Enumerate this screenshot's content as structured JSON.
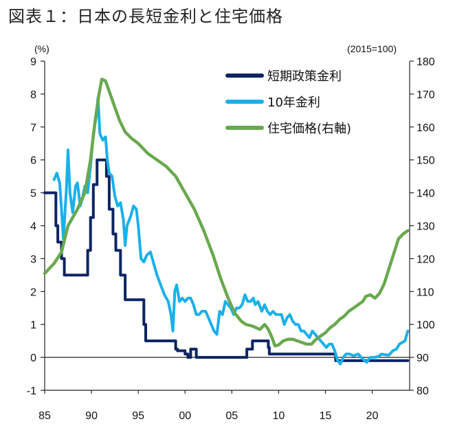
{
  "title": "図表１：日本の長短金利と住宅価格",
  "chart_data": {
    "type": "line",
    "title": "図表１：日本の長短金利と住宅価格",
    "left_axis": {
      "unit": "(%)",
      "ylim": [
        -1,
        9
      ],
      "ticks": [
        "-1",
        "0",
        "1",
        "2",
        "3",
        "4",
        "5",
        "6",
        "7",
        "8",
        "9"
      ]
    },
    "right_axis": {
      "unit": "(2015=100)",
      "ylim": [
        80,
        180
      ],
      "ticks": [
        "80",
        "90",
        "100",
        "110",
        "120",
        "130",
        "140",
        "150",
        "160",
        "170",
        "180"
      ]
    },
    "x_axis": {
      "xlim": [
        1985,
        2024
      ],
      "ticks": [
        {
          "label": "85",
          "year": 1985
        },
        {
          "label": "90",
          "year": 1990
        },
        {
          "label": "95",
          "year": 1995
        },
        {
          "label": "00",
          "year": 2000
        },
        {
          "label": "05",
          "year": 2005
        },
        {
          "label": "10",
          "year": 2010
        },
        {
          "label": "15",
          "year": 2015
        },
        {
          "label": "20",
          "year": 2020
        }
      ]
    },
    "legend_position": "top-right",
    "series": [
      {
        "name": "短期政策金利",
        "color": "#0c2461",
        "axis": "left",
        "step": true,
        "points": [
          [
            1985.0,
            5.0
          ],
          [
            1986.0,
            5.0
          ],
          [
            1986.2,
            4.0
          ],
          [
            1986.4,
            3.5
          ],
          [
            1986.8,
            3.0
          ],
          [
            1987.1,
            2.5
          ],
          [
            1989.4,
            2.5
          ],
          [
            1989.6,
            3.25
          ],
          [
            1989.9,
            4.25
          ],
          [
            1990.2,
            5.25
          ],
          [
            1990.6,
            6.0
          ],
          [
            1991.4,
            6.0
          ],
          [
            1991.6,
            5.5
          ],
          [
            1991.9,
            4.5
          ],
          [
            1992.3,
            3.75
          ],
          [
            1992.6,
            3.25
          ],
          [
            1993.1,
            2.5
          ],
          [
            1993.6,
            1.75
          ],
          [
            1995.3,
            1.75
          ],
          [
            1995.6,
            1.0
          ],
          [
            1995.8,
            0.5
          ],
          [
            1998.6,
            0.5
          ],
          [
            1999.0,
            0.25
          ],
          [
            1999.2,
            0.2
          ],
          [
            2000.0,
            0.1
          ],
          [
            2000.3,
            0.0
          ],
          [
            2000.6,
            0.25
          ],
          [
            2001.0,
            0.25
          ],
          [
            2001.2,
            0.0
          ],
          [
            2006.3,
            0.0
          ],
          [
            2006.6,
            0.25
          ],
          [
            2007.0,
            0.25
          ],
          [
            2007.2,
            0.5
          ],
          [
            2008.8,
            0.5
          ],
          [
            2008.9,
            0.3
          ],
          [
            2009.0,
            0.1
          ],
          [
            2016.0,
            0.1
          ],
          [
            2016.1,
            -0.1
          ],
          [
            2023.8,
            -0.1
          ]
        ]
      },
      {
        "name": "10年金利",
        "color": "#1ab0ea",
        "axis": "left",
        "step": false,
        "points": [
          [
            1986.0,
            5.4
          ],
          [
            1986.3,
            5.6
          ],
          [
            1986.6,
            5.3
          ],
          [
            1986.8,
            4.5
          ],
          [
            1987.0,
            3.6
          ],
          [
            1987.3,
            5.0
          ],
          [
            1987.5,
            6.3
          ],
          [
            1987.7,
            5.0
          ],
          [
            1988.0,
            4.4
          ],
          [
            1988.3,
            5.2
          ],
          [
            1988.5,
            5.3
          ],
          [
            1988.8,
            4.6
          ],
          [
            1989.0,
            4.8
          ],
          [
            1989.3,
            5.2
          ],
          [
            1989.6,
            5.0
          ],
          [
            1989.9,
            5.8
          ],
          [
            1990.2,
            6.8
          ],
          [
            1990.5,
            7.3
          ],
          [
            1990.7,
            7.9
          ],
          [
            1990.9,
            6.8
          ],
          [
            1991.2,
            6.6
          ],
          [
            1991.5,
            6.7
          ],
          [
            1991.7,
            6.0
          ],
          [
            1991.9,
            5.6
          ],
          [
            1992.2,
            5.5
          ],
          [
            1992.5,
            4.9
          ],
          [
            1992.8,
            4.6
          ],
          [
            1993.1,
            4.7
          ],
          [
            1993.4,
            4.2
          ],
          [
            1993.6,
            3.4
          ],
          [
            1993.8,
            4.0
          ],
          [
            1994.2,
            4.3
          ],
          [
            1994.5,
            4.6
          ],
          [
            1994.8,
            4.5
          ],
          [
            1995.0,
            4.0
          ],
          [
            1995.3,
            3.0
          ],
          [
            1995.6,
            2.9
          ],
          [
            1995.9,
            3.1
          ],
          [
            1996.3,
            3.2
          ],
          [
            1996.7,
            2.8
          ],
          [
            1997.0,
            2.5
          ],
          [
            1997.4,
            2.2
          ],
          [
            1997.8,
            1.9
          ],
          [
            1998.2,
            1.7
          ],
          [
            1998.5,
            1.3
          ],
          [
            1998.7,
            0.8
          ],
          [
            1998.9,
            2.0
          ],
          [
            1999.1,
            2.2
          ],
          [
            1999.4,
            1.7
          ],
          [
            1999.7,
            1.8
          ],
          [
            2000.0,
            1.7
          ],
          [
            2000.3,
            1.8
          ],
          [
            2000.6,
            1.8
          ],
          [
            2000.9,
            1.6
          ],
          [
            2001.2,
            1.3
          ],
          [
            2001.5,
            1.3
          ],
          [
            2001.8,
            1.4
          ],
          [
            2002.2,
            1.4
          ],
          [
            2002.5,
            1.2
          ],
          [
            2002.8,
            1.0
          ],
          [
            2003.1,
            0.8
          ],
          [
            2003.4,
            0.7
          ],
          [
            2003.7,
            1.4
          ],
          [
            2004.0,
            1.3
          ],
          [
            2004.3,
            1.7
          ],
          [
            2004.6,
            1.6
          ],
          [
            2004.9,
            1.5
          ],
          [
            2005.2,
            1.3
          ],
          [
            2005.5,
            1.5
          ],
          [
            2005.8,
            1.5
          ],
          [
            2006.1,
            1.6
          ],
          [
            2006.4,
            1.9
          ],
          [
            2006.7,
            1.7
          ],
          [
            2007.0,
            1.7
          ],
          [
            2007.3,
            1.8
          ],
          [
            2007.5,
            1.6
          ],
          [
            2007.8,
            1.7
          ],
          [
            2008.2,
            1.4
          ],
          [
            2008.5,
            1.6
          ],
          [
            2008.8,
            1.4
          ],
          [
            2009.1,
            1.3
          ],
          [
            2009.4,
            1.4
          ],
          [
            2009.7,
            1.3
          ],
          [
            2010.0,
            1.3
          ],
          [
            2010.3,
            1.3
          ],
          [
            2010.6,
            1.0
          ],
          [
            2010.9,
            1.2
          ],
          [
            2011.2,
            1.3
          ],
          [
            2011.5,
            1.1
          ],
          [
            2011.8,
            1.0
          ],
          [
            2012.1,
            1.0
          ],
          [
            2012.4,
            0.8
          ],
          [
            2012.7,
            0.8
          ],
          [
            2013.0,
            0.7
          ],
          [
            2013.3,
            0.6
          ],
          [
            2013.6,
            0.8
          ],
          [
            2013.9,
            0.7
          ],
          [
            2014.2,
            0.6
          ],
          [
            2014.5,
            0.5
          ],
          [
            2014.8,
            0.4
          ],
          [
            2015.1,
            0.3
          ],
          [
            2015.4,
            0.4
          ],
          [
            2015.7,
            0.4
          ],
          [
            2016.0,
            0.2
          ],
          [
            2016.3,
            -0.1
          ],
          [
            2016.6,
            -0.2
          ],
          [
            2016.9,
            0.0
          ],
          [
            2017.2,
            0.1
          ],
          [
            2017.6,
            0.1
          ],
          [
            2018.0,
            0.05
          ],
          [
            2018.5,
            0.1
          ],
          [
            2019.0,
            -0.05
          ],
          [
            2019.4,
            -0.15
          ],
          [
            2019.8,
            0.0
          ],
          [
            2020.2,
            0.0
          ],
          [
            2020.6,
            0.02
          ],
          [
            2021.0,
            0.1
          ],
          [
            2021.4,
            0.08
          ],
          [
            2021.8,
            0.07
          ],
          [
            2022.2,
            0.2
          ],
          [
            2022.6,
            0.25
          ],
          [
            2022.9,
            0.4
          ],
          [
            2023.2,
            0.45
          ],
          [
            2023.5,
            0.5
          ],
          [
            2023.8,
            0.8
          ]
        ]
      },
      {
        "name": "住宅価格(右軸)",
        "color": "#6aa84f",
        "axis": "right",
        "step": false,
        "points": [
          [
            1985.0,
            115.5
          ],
          [
            1986.0,
            118.5
          ],
          [
            1986.8,
            122.0
          ],
          [
            1987.5,
            130.0
          ],
          [
            1988.5,
            135.0
          ],
          [
            1989.3,
            140.0
          ],
          [
            1989.9,
            150.0
          ],
          [
            1990.4,
            162.0
          ],
          [
            1990.8,
            170.0
          ],
          [
            1991.1,
            174.5
          ],
          [
            1991.5,
            174.0
          ],
          [
            1992.0,
            170.0
          ],
          [
            1992.5,
            166.0
          ],
          [
            1993.0,
            162.0
          ],
          [
            1993.6,
            158.5
          ],
          [
            1994.3,
            156.5
          ],
          [
            1995.0,
            155.0
          ],
          [
            1996.0,
            152.0
          ],
          [
            1997.0,
            150.0
          ],
          [
            1998.0,
            148.0
          ],
          [
            1999.0,
            145.0
          ],
          [
            2000.0,
            140.0
          ],
          [
            2001.0,
            135.0
          ],
          [
            2002.0,
            128.5
          ],
          [
            2003.0,
            121.0
          ],
          [
            2003.8,
            114.0
          ],
          [
            2004.6,
            108.0
          ],
          [
            2005.3,
            103.5
          ],
          [
            2006.0,
            101.0
          ],
          [
            2006.5,
            100.0
          ],
          [
            2007.2,
            99.5
          ],
          [
            2008.0,
            98.5
          ],
          [
            2008.5,
            100.0
          ],
          [
            2008.9,
            98.5
          ],
          [
            2009.3,
            96.0
          ],
          [
            2009.6,
            93.5
          ],
          [
            2010.0,
            93.8
          ],
          [
            2010.5,
            95.0
          ],
          [
            2011.0,
            95.5
          ],
          [
            2011.5,
            95.5
          ],
          [
            2012.0,
            95.0
          ],
          [
            2012.5,
            94.5
          ],
          [
            2013.0,
            94.0
          ],
          [
            2013.5,
            94.0
          ],
          [
            2014.0,
            95.5
          ],
          [
            2014.5,
            96.5
          ],
          [
            2015.0,
            97.5
          ],
          [
            2015.5,
            99.0
          ],
          [
            2016.0,
            100.0
          ],
          [
            2016.5,
            101.5
          ],
          [
            2017.0,
            102.5
          ],
          [
            2017.5,
            104.0
          ],
          [
            2018.0,
            105.0
          ],
          [
            2018.5,
            106.0
          ],
          [
            2019.0,
            107.0
          ],
          [
            2019.3,
            108.5
          ],
          [
            2019.8,
            109.0
          ],
          [
            2020.3,
            108.0
          ],
          [
            2020.8,
            109.5
          ],
          [
            2021.3,
            112.5
          ],
          [
            2021.8,
            117.0
          ],
          [
            2022.3,
            121.5
          ],
          [
            2022.8,
            126.0
          ],
          [
            2023.3,
            127.5
          ],
          [
            2023.8,
            128.5
          ]
        ]
      }
    ]
  }
}
